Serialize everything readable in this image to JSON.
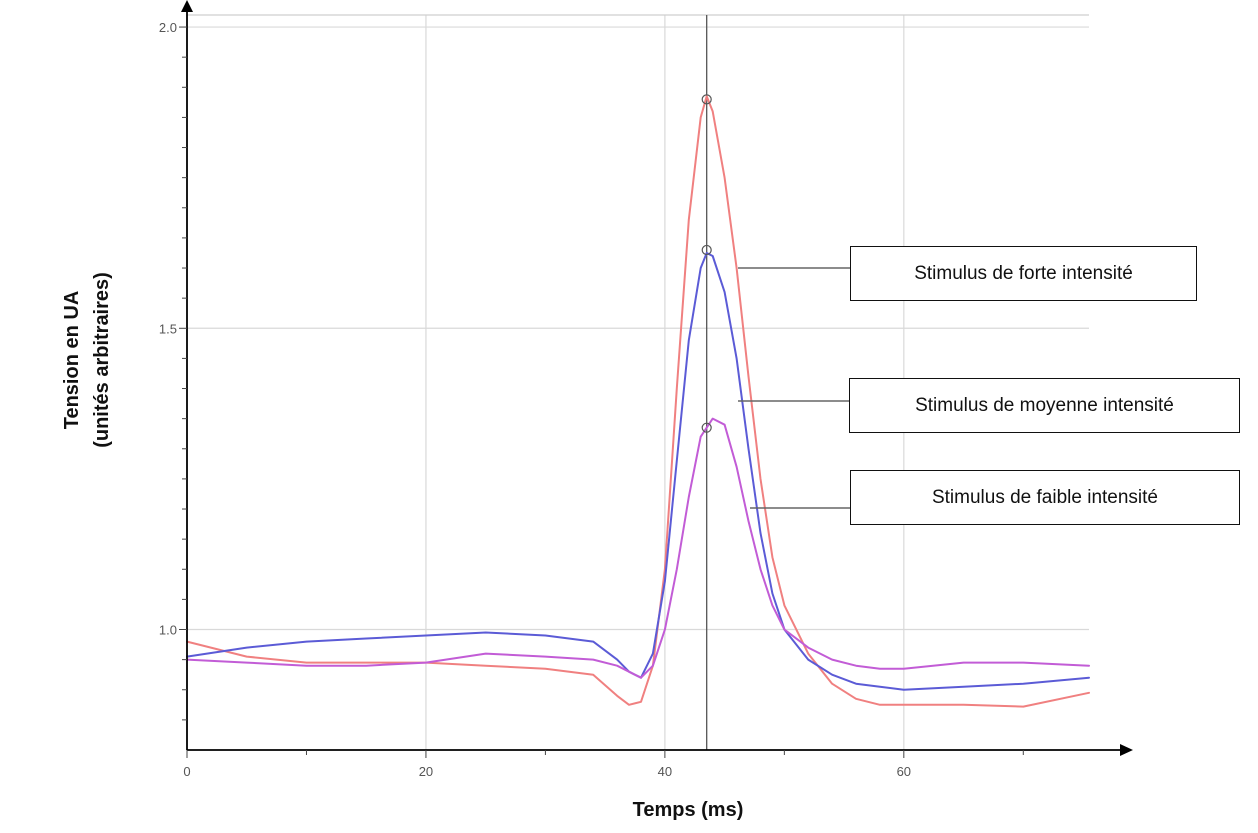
{
  "chart_data": {
    "type": "line",
    "title": "",
    "xlabel": "Temps (ms)",
    "ylabel": "Tension en UA",
    "ylabel_sub": "(unités arbitraires)",
    "xlim": [
      0,
      75.5
    ],
    "ylim": [
      0.8,
      2.02
    ],
    "x_ticks": [
      0,
      20,
      40,
      60
    ],
    "x_tick_labels": [
      "0",
      "20",
      "40",
      "60"
    ],
    "y_ticks": [
      1.0,
      1.5,
      2.0
    ],
    "y_tick_labels": [
      "1.0",
      "1.5",
      "2.0"
    ],
    "grid": true,
    "cursor_x": 43.5,
    "legend_placement": "right",
    "series": [
      {
        "name": "Stimulus de forte intensité",
        "color": "#f08080",
        "peak_marker": [
          43.5,
          1.88
        ],
        "x": [
          0,
          5,
          10,
          15,
          20,
          25,
          30,
          34,
          36,
          37,
          38,
          39,
          40,
          41,
          42,
          43,
          43.5,
          44,
          45,
          46,
          47,
          48,
          49,
          50,
          52,
          54,
          56,
          58,
          60,
          65,
          70,
          75.5
        ],
        "values": [
          0.98,
          0.955,
          0.945,
          0.945,
          0.945,
          0.94,
          0.935,
          0.925,
          0.89,
          0.875,
          0.88,
          0.94,
          1.1,
          1.4,
          1.68,
          1.85,
          1.885,
          1.86,
          1.75,
          1.6,
          1.42,
          1.25,
          1.12,
          1.04,
          0.96,
          0.91,
          0.885,
          0.875,
          0.875,
          0.875,
          0.872,
          0.895
        ]
      },
      {
        "name": "Stimulus de moyenne intensité",
        "color": "#5b5bd6",
        "peak_marker": [
          43.5,
          1.63
        ],
        "x": [
          0,
          5,
          10,
          15,
          20,
          25,
          30,
          34,
          36,
          37,
          38,
          39,
          40,
          41,
          42,
          43,
          43.5,
          44,
          45,
          46,
          47,
          48,
          49,
          50,
          52,
          54,
          56,
          58,
          60,
          65,
          70,
          75.5
        ],
        "values": [
          0.955,
          0.97,
          0.98,
          0.985,
          0.99,
          0.995,
          0.99,
          0.98,
          0.95,
          0.93,
          0.92,
          0.96,
          1.08,
          1.28,
          1.48,
          1.6,
          1.625,
          1.62,
          1.56,
          1.45,
          1.3,
          1.16,
          1.06,
          1.0,
          0.95,
          0.925,
          0.91,
          0.905,
          0.9,
          0.905,
          0.91,
          0.92
        ]
      },
      {
        "name": "Stimulus de faible intensité",
        "color": "#c25cd6",
        "peak_marker": [
          43.5,
          1.335
        ],
        "x": [
          0,
          5,
          10,
          15,
          20,
          25,
          30,
          34,
          36,
          37,
          38,
          39,
          40,
          41,
          42,
          43,
          44,
          45,
          46,
          47,
          48,
          49,
          50,
          52,
          54,
          56,
          58,
          60,
          65,
          70,
          75.5
        ],
        "values": [
          0.95,
          0.945,
          0.94,
          0.94,
          0.945,
          0.96,
          0.955,
          0.95,
          0.94,
          0.93,
          0.92,
          0.94,
          1.0,
          1.1,
          1.22,
          1.32,
          1.35,
          1.34,
          1.27,
          1.18,
          1.1,
          1.04,
          1.0,
          0.97,
          0.95,
          0.94,
          0.935,
          0.935,
          0.945,
          0.945,
          0.94
        ]
      }
    ]
  },
  "legend": [
    {
      "label": "Stimulus de forte intensité"
    },
    {
      "label": "Stimulus de moyenne intensité"
    },
    {
      "label": "Stimulus de faible intensité"
    }
  ]
}
